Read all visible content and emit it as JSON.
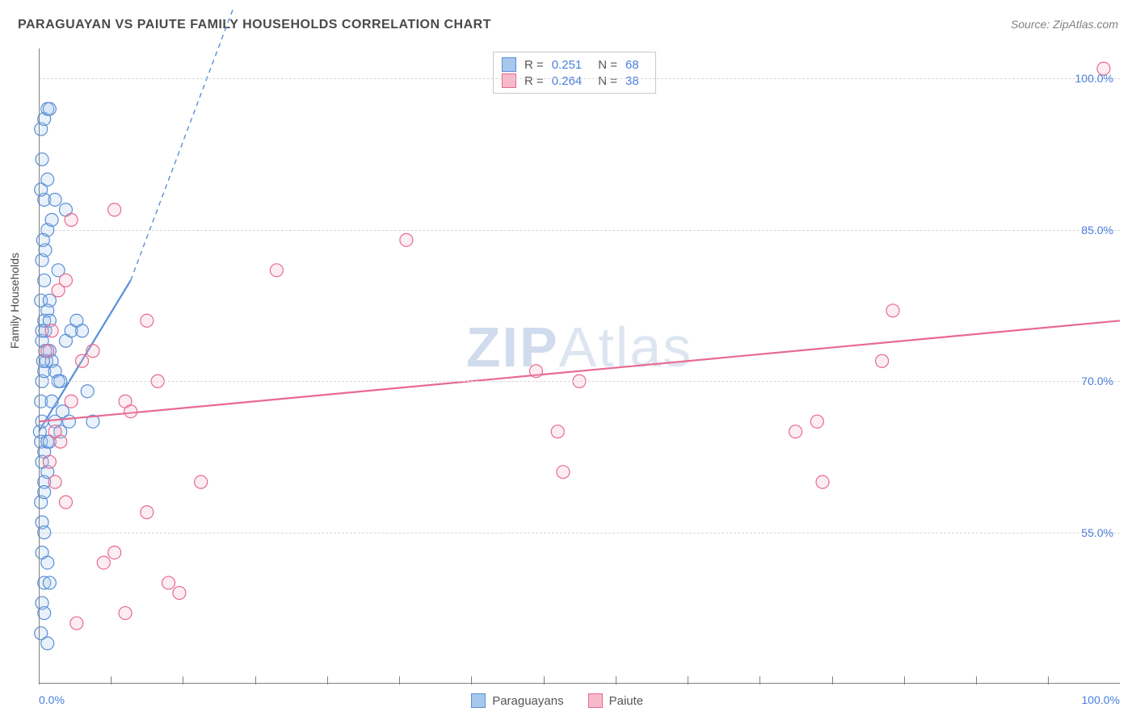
{
  "title": "PARAGUAYAN VS PAIUTE FAMILY HOUSEHOLDS CORRELATION CHART",
  "source_label": "Source: ZipAtlas.com",
  "watermark": {
    "bold": "ZIP",
    "light": "Atlas"
  },
  "y_axis_label": "Family Households",
  "chart": {
    "type": "scatter",
    "xlim": [
      0,
      100
    ],
    "ylim": [
      40,
      103
    ],
    "x_ticks_label": {
      "min": "0.0%",
      "max": "100.0%"
    },
    "x_minor_tick_step": 6.67,
    "y_ticks": [
      {
        "v": 55,
        "label": "55.0%"
      },
      {
        "v": 70,
        "label": "70.0%"
      },
      {
        "v": 85,
        "label": "85.0%"
      },
      {
        "v": 100,
        "label": "100.0%"
      }
    ],
    "y_gridlines": [
      55,
      70,
      85,
      100
    ],
    "grid_color": "#d8d8d8",
    "axis_color": "#808080",
    "background_color": "#ffffff",
    "tick_label_color": "#4a7fdb",
    "marker_radius": 8,
    "marker_stroke_width": 1.2,
    "marker_fill_opacity": 0.25,
    "line_width_solid": 2.2,
    "line_dash": "6 5",
    "series": [
      {
        "id": "paraguayans",
        "name": "Paraguayans",
        "color_stroke": "#5a8fd6",
        "color_fill": "#a8c7ec",
        "stats": {
          "R": "0.251",
          "N": "68"
        },
        "trend": {
          "x1": 0,
          "y1": 65,
          "x2": 8.5,
          "y2": 80,
          "dash_x2": 18,
          "dash_y2": 107
        },
        "points": [
          [
            0.1,
            65
          ],
          [
            0.2,
            64
          ],
          [
            0.3,
            66
          ],
          [
            0.5,
            63
          ],
          [
            0.8,
            64
          ],
          [
            0.2,
            68
          ],
          [
            0.3,
            70
          ],
          [
            0.5,
            71
          ],
          [
            0.7,
            72
          ],
          [
            0.3,
            74
          ],
          [
            0.6,
            75
          ],
          [
            1.0,
            73
          ],
          [
            1.2,
            72
          ],
          [
            1.5,
            71
          ],
          [
            2.0,
            70
          ],
          [
            2.5,
            74
          ],
          [
            3.0,
            75
          ],
          [
            0.2,
            78
          ],
          [
            0.5,
            80
          ],
          [
            1.0,
            78
          ],
          [
            0.3,
            82
          ],
          [
            0.8,
            85
          ],
          [
            1.2,
            86
          ],
          [
            0.5,
            88
          ],
          [
            0.2,
            89
          ],
          [
            0.8,
            90
          ],
          [
            1.5,
            88
          ],
          [
            0.3,
            92
          ],
          [
            0.2,
            95
          ],
          [
            0.5,
            96
          ],
          [
            0.8,
            97
          ],
          [
            1.0,
            97
          ],
          [
            0.3,
            62
          ],
          [
            0.5,
            60
          ],
          [
            0.8,
            61
          ],
          [
            0.2,
            58
          ],
          [
            0.5,
            59
          ],
          [
            1.0,
            64
          ],
          [
            1.5,
            66
          ],
          [
            2.0,
            65
          ],
          [
            0.3,
            56
          ],
          [
            0.5,
            55
          ],
          [
            0.3,
            53
          ],
          [
            0.8,
            52
          ],
          [
            0.5,
            50
          ],
          [
            1.0,
            50
          ],
          [
            0.3,
            48
          ],
          [
            0.5,
            47
          ],
          [
            0.2,
            45
          ],
          [
            0.8,
            44
          ],
          [
            0.3,
            75
          ],
          [
            0.5,
            76
          ],
          [
            0.8,
            77
          ],
          [
            1.0,
            76
          ],
          [
            1.2,
            68
          ],
          [
            1.8,
            70
          ],
          [
            2.2,
            67
          ],
          [
            2.8,
            66
          ],
          [
            3.5,
            76
          ],
          [
            4.0,
            75
          ],
          [
            5.0,
            66
          ],
          [
            4.5,
            69
          ],
          [
            0.6,
            83
          ],
          [
            0.4,
            84
          ],
          [
            1.8,
            81
          ],
          [
            2.5,
            87
          ],
          [
            0.4,
            72
          ],
          [
            0.6,
            73
          ]
        ]
      },
      {
        "id": "paiute",
        "name": "Paiute",
        "color_stroke": "#e86a8f",
        "color_fill": "#f5b9ca",
        "stats": {
          "R": "0.264",
          "N": "38"
        },
        "trend": {
          "x1": 0,
          "y1": 66,
          "x2": 100,
          "y2": 76
        },
        "points": [
          [
            1.5,
            65
          ],
          [
            2.0,
            64
          ],
          [
            3.0,
            68
          ],
          [
            1.0,
            62
          ],
          [
            1.5,
            60
          ],
          [
            2.5,
            58
          ],
          [
            0.8,
            73
          ],
          [
            1.2,
            75
          ],
          [
            1.8,
            79
          ],
          [
            2.5,
            80
          ],
          [
            3.0,
            86
          ],
          [
            4.0,
            72
          ],
          [
            5.0,
            73
          ],
          [
            7.0,
            87
          ],
          [
            8.0,
            68
          ],
          [
            8.5,
            67
          ],
          [
            10.0,
            76
          ],
          [
            11.0,
            70
          ],
          [
            6.0,
            52
          ],
          [
            7.0,
            53
          ],
          [
            8.0,
            47
          ],
          [
            10.0,
            57
          ],
          [
            12.0,
            50
          ],
          [
            13.0,
            49
          ],
          [
            15.0,
            60
          ],
          [
            22.0,
            81
          ],
          [
            34.0,
            84
          ],
          [
            46.0,
            71
          ],
          [
            48.0,
            65
          ],
          [
            48.5,
            61
          ],
          [
            50.0,
            70
          ],
          [
            70.0,
            65
          ],
          [
            72.0,
            66
          ],
          [
            72.5,
            60
          ],
          [
            78.0,
            72
          ],
          [
            79.0,
            77
          ],
          [
            98.5,
            101
          ],
          [
            3.5,
            46
          ]
        ]
      }
    ]
  },
  "stats_box_labels": {
    "R": "R =",
    "N": "N ="
  },
  "legend": {
    "items": [
      {
        "label": "Paraguayans",
        "fill": "#a8c7ec",
        "stroke": "#5a8fd6"
      },
      {
        "label": "Paiute",
        "fill": "#f5b9ca",
        "stroke": "#e86a8f"
      }
    ]
  }
}
